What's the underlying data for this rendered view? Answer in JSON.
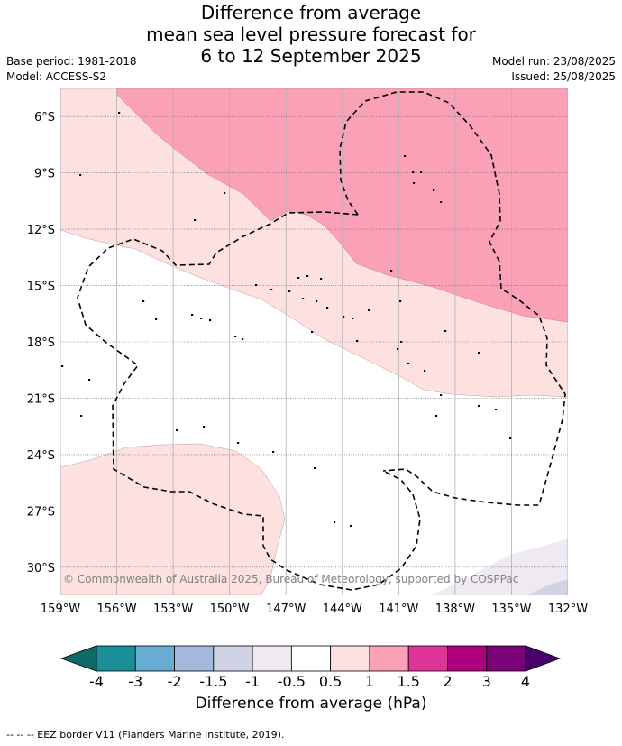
{
  "title": {
    "line1": "Difference from average",
    "line2": "mean sea level pressure forecast for",
    "line3": "6 to 12 September 2025"
  },
  "meta": {
    "base_period": "Base period: 1981-2018",
    "model": "Model: ACCESS-S2",
    "model_run": "Model run: 23/08/2025",
    "issued": "Issued: 25/08/2025"
  },
  "map": {
    "lon_range": [
      -159,
      -132
    ],
    "lat_range": [
      -31.5,
      -4.5
    ],
    "lon_ticks": [
      "159°W",
      "156°W",
      "153°W",
      "150°W",
      "147°W",
      "144°W",
      "141°W",
      "138°W",
      "135°W",
      "132°W"
    ],
    "lat_ticks": [
      "6°S",
      "9°S",
      "12°S",
      "15°S",
      "18°S",
      "21°S",
      "24°S",
      "27°S",
      "30°S"
    ],
    "copyright": "© Commonwealth of Australia 2025, Bureau of Meteorology, supported by COSPPac",
    "colors": {
      "c0_5_1": "#fde0e0",
      "c1_1_5": "#fba1b7",
      "cm0_5_m1": "#efeaf2",
      "cm1_m1_5": "#d0d2e6"
    }
  },
  "colorbar": {
    "ticks": [
      "-4",
      "-3",
      "-2",
      "-1.5",
      "-1",
      "-0.5",
      "0.5",
      "1",
      "1.5",
      "2",
      "3",
      "4"
    ],
    "colors": [
      "#1a8f98",
      "#68abd3",
      "#a4b7dc",
      "#d0d2e6",
      "#efeaf2",
      "#ffffff",
      "#fde0e0",
      "#fba1b7",
      "#de3497",
      "#ad017e",
      "#7a0177"
    ],
    "under_color": "#0d6a64",
    "over_color": "#49006a",
    "label": "Difference from average (hPa)"
  },
  "footer": "--  --  -- EEZ border V11 (Flanders Marine Institute, 2019)."
}
